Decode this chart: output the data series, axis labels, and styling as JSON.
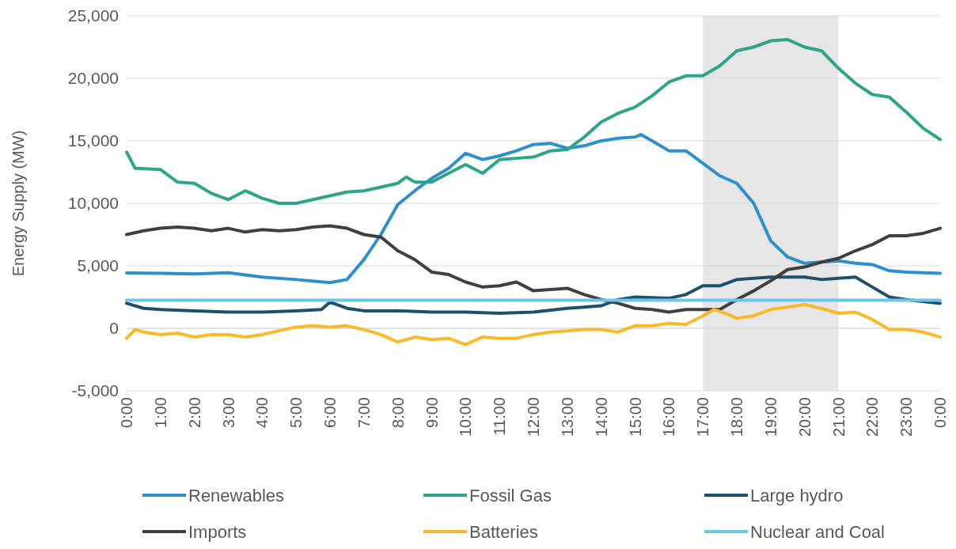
{
  "chart_data": {
    "type": "line",
    "ylabel": "Energy Supply (MW)",
    "ylim": [
      -5000,
      25000
    ],
    "yticks": [
      {
        "value": -5000,
        "label": "-5,000"
      },
      0,
      {
        "value": 5000,
        "label": "5,000"
      },
      {
        "value": 10000,
        "label": "10,000"
      },
      {
        "value": 15000,
        "label": "15,000"
      },
      {
        "value": 20000,
        "label": "20,000"
      },
      {
        "value": 25000,
        "label": "25,000"
      }
    ],
    "xlim": [
      0,
      24
    ],
    "xticks": [
      {
        "value": 0,
        "label": "0:00"
      },
      {
        "value": 1,
        "label": "1:00"
      },
      {
        "value": 2,
        "label": "2:00"
      },
      {
        "value": 3,
        "label": "3:00"
      },
      {
        "value": 4,
        "label": "4:00"
      },
      {
        "value": 5,
        "label": "5:00"
      },
      {
        "value": 6,
        "label": "6:00"
      },
      {
        "value": 7,
        "label": "7:00"
      },
      {
        "value": 8,
        "label": "8:00"
      },
      {
        "value": 9,
        "label": "9:00"
      },
      {
        "value": 10,
        "label": "10:00"
      },
      {
        "value": 11,
        "label": "11:00"
      },
      {
        "value": 12,
        "label": "12:00"
      },
      {
        "value": 13,
        "label": "13:00"
      },
      {
        "value": 14,
        "label": "14:00"
      },
      {
        "value": 15,
        "label": "15:00"
      },
      {
        "value": 16,
        "label": "16:00"
      },
      {
        "value": 17,
        "label": "17:00"
      },
      {
        "value": 18,
        "label": "18:00"
      },
      {
        "value": 19,
        "label": "19:00"
      },
      {
        "value": 20,
        "label": "20:00"
      },
      {
        "value": 21,
        "label": "21:00"
      },
      {
        "value": 22,
        "label": "22:00"
      },
      {
        "value": 23,
        "label": "23:00"
      },
      {
        "value": 24,
        "label": "0:00"
      }
    ],
    "grid": "y",
    "legend": "bottom",
    "marker": "none",
    "line_style": "solid",
    "bands": [
      {
        "axis": "x",
        "from": 17,
        "to": 21,
        "color": "#e6e6e6"
      }
    ],
    "series": [
      {
        "name": "Renewables",
        "color": "#2e8fcc",
        "x": [
          0,
          1,
          2,
          3,
          4,
          5,
          6,
          6.5,
          7,
          7.5,
          8,
          8.5,
          9,
          9.5,
          10,
          10.5,
          11,
          11.5,
          12,
          12.5,
          13,
          13.5,
          14,
          14.5,
          15,
          15.17,
          15.5,
          16,
          16.5,
          17,
          17.5,
          18,
          18.5,
          19,
          19.5,
          20,
          20.5,
          21,
          21.5,
          22,
          22.5,
          23,
          24
        ],
        "values": [
          4430,
          4400,
          4350,
          4450,
          4100,
          3900,
          3650,
          3900,
          5500,
          7500,
          9900,
          11000,
          12000,
          12800,
          14000,
          13500,
          13800,
          14200,
          14700,
          14800,
          14400,
          14600,
          15000,
          15200,
          15300,
          15500,
          15000,
          14200,
          14200,
          13200,
          12200,
          11600,
          10000,
          7000,
          5700,
          5200,
          5300,
          5400,
          5200,
          5100,
          4600,
          4500,
          4400
        ]
      },
      {
        "name": "Fossil Gas",
        "color": "#2ea58a",
        "x": [
          0,
          0.25,
          1,
          1.5,
          2,
          2.5,
          3,
          3.5,
          4,
          4.5,
          5,
          5.5,
          6,
          6.5,
          7,
          7.5,
          8,
          8.25,
          8.5,
          9,
          9.5,
          10,
          10.5,
          11,
          11.5,
          12,
          12.5,
          13,
          13.5,
          14,
          14.5,
          15,
          15.5,
          16,
          16.5,
          17,
          17.5,
          18,
          18.5,
          19,
          19.5,
          20,
          20.5,
          21,
          21.5,
          22,
          22.5,
          23,
          23.5,
          24
        ],
        "values": [
          14100,
          12800,
          12700,
          11700,
          11600,
          10800,
          10300,
          11000,
          10400,
          10000,
          10000,
          10300,
          10600,
          10900,
          11000,
          11300,
          11600,
          12100,
          11700,
          11700,
          12400,
          13100,
          12400,
          13500,
          13600,
          13700,
          14200,
          14300,
          15300,
          16500,
          17200,
          17700,
          18600,
          19700,
          20200,
          20200,
          21000,
          22200,
          22500,
          23000,
          23100,
          22500,
          22200,
          20800,
          19600,
          18700,
          18500,
          17300,
          16000,
          15100
        ]
      },
      {
        "name": "Large hydro",
        "color": "#1d4f6e",
        "x": [
          0,
          0.5,
          1,
          2,
          3,
          4,
          5,
          5.75,
          6,
          6.5,
          7,
          8,
          9,
          10,
          11,
          12,
          13,
          13.5,
          14,
          14.5,
          15,
          16,
          16.5,
          17,
          17.5,
          18,
          19,
          20,
          20.5,
          21,
          21.5,
          22,
          22.5,
          23,
          24
        ],
        "values": [
          2000,
          1600,
          1500,
          1400,
          1300,
          1300,
          1400,
          1500,
          2100,
          1600,
          1400,
          1400,
          1300,
          1300,
          1200,
          1300,
          1600,
          1700,
          1800,
          2300,
          2500,
          2400,
          2700,
          3400,
          3400,
          3900,
          4100,
          4100,
          3900,
          4000,
          4100,
          3300,
          2500,
          2300,
          2000
        ]
      },
      {
        "name": "Imports",
        "color": "#404040",
        "x": [
          0,
          0.5,
          1,
          1.5,
          2,
          2.5,
          3,
          3.5,
          4,
          4.5,
          5,
          5.5,
          6,
          6.5,
          7,
          7.5,
          8,
          8.5,
          9,
          9.5,
          10,
          10.5,
          11,
          11.5,
          12,
          12.5,
          13,
          13.5,
          14,
          14.5,
          15,
          15.5,
          16,
          16.5,
          17,
          17.5,
          18,
          18.5,
          19,
          19.5,
          20,
          20.5,
          21,
          21.5,
          22,
          22.5,
          23,
          23.5,
          24
        ],
        "values": [
          7500,
          7800,
          8000,
          8100,
          8000,
          7800,
          8000,
          7700,
          7900,
          7800,
          7900,
          8100,
          8200,
          8000,
          7500,
          7300,
          6200,
          5500,
          4500,
          4300,
          3700,
          3300,
          3400,
          3700,
          3000,
          3100,
          3200,
          2700,
          2300,
          2000,
          1600,
          1500,
          1300,
          1500,
          1500,
          1500,
          2300,
          3000,
          3800,
          4700,
          4900,
          5300,
          5600,
          6200,
          6700,
          7400,
          7400,
          7600,
          8000
        ]
      },
      {
        "name": "Batteries",
        "color": "#fbb829",
        "x": [
          0,
          0.25,
          0.5,
          1,
          1.5,
          2,
          2.5,
          3,
          3.5,
          4,
          4.5,
          5,
          5.5,
          6,
          6.5,
          7,
          7.5,
          8,
          8.5,
          9,
          9.5,
          10,
          10.5,
          11,
          11.5,
          12,
          12.5,
          13,
          13.5,
          14,
          14.5,
          15,
          15.5,
          16,
          16.5,
          17,
          17.33,
          17.67,
          18,
          18.5,
          19,
          19.5,
          20,
          20.5,
          21,
          21.5,
          22,
          22.5,
          23,
          23.5,
          24
        ],
        "values": [
          -800,
          -100,
          -300,
          -500,
          -400,
          -700,
          -500,
          -500,
          -700,
          -500,
          -200,
          100,
          200,
          100,
          200,
          -100,
          -500,
          -1100,
          -700,
          -900,
          -800,
          -1300,
          -700,
          -800,
          -800,
          -500,
          -300,
          -200,
          -100,
          -100,
          -300,
          200,
          200,
          400,
          300,
          1000,
          1500,
          1200,
          800,
          1000,
          1500,
          1700,
          1900,
          1600,
          1200,
          1300,
          700,
          -100,
          -100,
          -300,
          -700
        ]
      },
      {
        "name": "Nuclear and Coal",
        "color": "#6ec3e8",
        "x": [
          0,
          24
        ],
        "values": [
          2250,
          2250
        ]
      }
    ]
  }
}
